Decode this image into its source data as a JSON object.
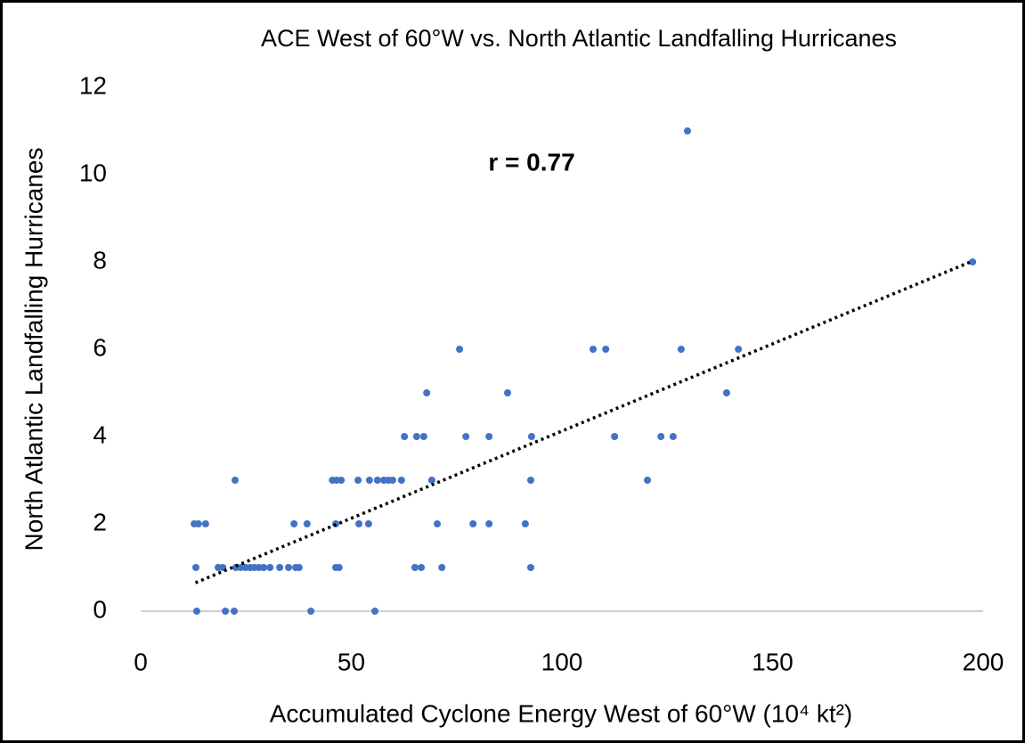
{
  "chart_data": {
    "type": "scatter",
    "title": "ACE West of 60°W vs. North Atlantic Landfalling Hurricanes",
    "x_label": "Accumulated Cyclone Energy West of 60°W (10⁴ kt²)",
    "y_label": "North Atlantic Landfalling Hurricanes",
    "annotation": "r = 0.77",
    "color": "#4472c4",
    "x": [
      13.3,
      20.1,
      22.2,
      40.4,
      55.6,
      13.1,
      18.4,
      19.5,
      22.6,
      23.7,
      24.9,
      26,
      27,
      28.1,
      29.2,
      30.7,
      33,
      35.1,
      36.8,
      37.6,
      46.3,
      47.1,
      65.1,
      66.6,
      71.5,
      92.6,
      12.7,
      13.7,
      15.4,
      36.4,
      39.5,
      46.3,
      51.8,
      54.1,
      70.4,
      78.9,
      82.7,
      91.3,
      22.4,
      45.5,
      46.5,
      47.6,
      51.6,
      54.3,
      56.2,
      57.7,
      58.8,
      59.8,
      61.9,
      69.1,
      92.6,
      120.3,
      62.6,
      65.5,
      67.2,
      77.2,
      82.7,
      92.8,
      112.5,
      123.5,
      126.4,
      67.9,
      87.1,
      139.1,
      75.7,
      107.4,
      110.4,
      128.3,
      141.9,
      197.5,
      129.8
    ],
    "values": [
      0,
      0,
      0,
      0,
      0,
      1,
      1,
      1,
      1,
      1,
      1,
      1,
      1,
      1,
      1,
      1,
      1,
      1,
      1,
      1,
      1,
      1,
      1,
      1,
      1,
      1,
      2,
      2,
      2,
      2,
      2,
      2,
      2,
      2,
      2,
      2,
      2,
      2,
      3,
      3,
      3,
      3,
      3,
      3,
      3,
      3,
      3,
      3,
      3,
      3,
      3,
      3,
      4,
      4,
      4,
      4,
      4,
      4,
      4,
      4,
      4,
      5,
      5,
      5,
      6,
      6,
      6,
      6,
      6,
      8,
      11
    ],
    "trendline": {
      "color": "#000000",
      "x": [
        13,
        197
      ],
      "y": [
        0.65,
        8
      ]
    },
    "xlim": [
      0,
      200
    ],
    "xticks": [
      0,
      50,
      100,
      150,
      200
    ],
    "ylim": [
      0,
      12
    ],
    "yticks": [
      0,
      2,
      4,
      6,
      8,
      10,
      12
    ],
    "grid": false
  }
}
